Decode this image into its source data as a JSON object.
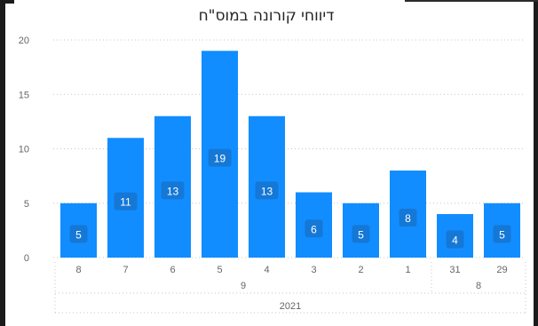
{
  "chart_data": {
    "type": "bar",
    "title": "דיווחי קורונה במוס\"ח",
    "categories": [
      "8",
      "7",
      "6",
      "5",
      "4",
      "3",
      "2",
      "1",
      "31",
      "29"
    ],
    "values": [
      5,
      11,
      13,
      19,
      13,
      6,
      5,
      8,
      4,
      5
    ],
    "month_groups": [
      {
        "label": "9",
        "count": 8
      },
      {
        "label": "8",
        "count": 2
      }
    ],
    "year_groups": [
      {
        "label": "2021",
        "count": 10
      }
    ],
    "ylim": [
      0,
      20
    ],
    "yticks": [
      0,
      5,
      10,
      15,
      20
    ],
    "grid": true,
    "data_labels": true,
    "bar_color": "#118DFF",
    "label_bg_color": "#1578D6"
  }
}
